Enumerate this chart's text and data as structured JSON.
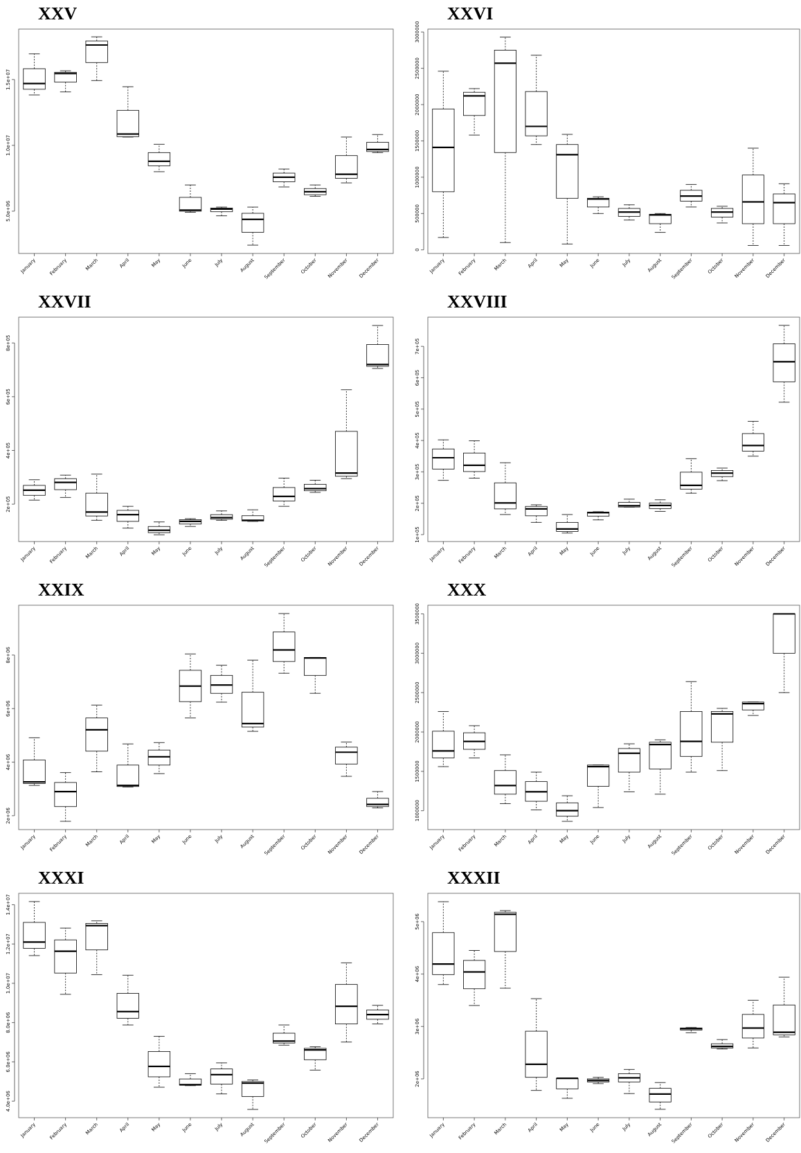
{
  "chart_data": [
    {
      "type": "box",
      "title": "XXV",
      "categories": [
        "January",
        "February",
        "March",
        "April",
        "May",
        "June",
        "July",
        "August",
        "September",
        "October",
        "November",
        "December"
      ],
      "ylim": [
        1790000,
        18830000
      ],
      "yticks": [
        {
          "value": 5000000,
          "label": "5.0e+06"
        },
        {
          "value": 10000000,
          "label": "1.0e+07"
        },
        {
          "value": 15000000,
          "label": "1.5e+07"
        }
      ],
      "boxes": [
        {
          "low": 13830000,
          "q1": 14260000,
          "median": 14690000,
          "q3": 15820000,
          "high": 16950000
        },
        {
          "low": 14060000,
          "q1": 14800000,
          "median": 15450000,
          "q3": 15550000,
          "high": 15660000
        },
        {
          "low": 14920000,
          "q1": 16290000,
          "median": 17620000,
          "q3": 17930000,
          "high": 18240000
        },
        {
          "low": 10630000,
          "q1": 10660000,
          "median": 10860000,
          "q3": 12660000,
          "high": 14450000
        },
        {
          "low": 8000000,
          "q1": 8440000,
          "median": 8790000,
          "q3": 9450000,
          "high": 10080000
        },
        {
          "low": 4920000,
          "q1": 5000000,
          "median": 5080000,
          "q3": 6050000,
          "high": 6990000
        },
        {
          "low": 4650000,
          "q1": 4960000,
          "median": 5160000,
          "q3": 5230000,
          "high": 5310000
        },
        {
          "low": 2420000,
          "q1": 3400000,
          "median": 4380000,
          "q3": 4840000,
          "high": 5310000
        },
        {
          "low": 6840000,
          "q1": 7230000,
          "median": 7580000,
          "q3": 7890000,
          "high": 8200000
        },
        {
          "low": 6130000,
          "q1": 6250000,
          "median": 6480000,
          "q3": 6720000,
          "high": 6990000
        },
        {
          "low": 7150000,
          "q1": 7500000,
          "median": 7810000,
          "q3": 9220000,
          "high": 10630000
        },
        {
          "low": 9450000,
          "q1": 9530000,
          "median": 9690000,
          "q3": 10230000,
          "high": 10820000
        }
      ]
    },
    {
      "type": "box",
      "title": "XXVI",
      "categories": [
        "January",
        "February",
        "March",
        "April",
        "May",
        "June",
        "July",
        "August",
        "September",
        "October",
        "November",
        "December"
      ],
      "ylim": [
        -50000,
        3040000
      ],
      "yticks": [
        0,
        500000,
        1000000,
        1500000,
        2000000,
        2500000,
        3000000
      ],
      "boxes": [
        {
          "low": 170000,
          "q1": 800000,
          "median": 1410000,
          "q3": 1940000,
          "high": 2460000
        },
        {
          "low": 1580000,
          "q1": 1850000,
          "median": 2120000,
          "q3": 2170000,
          "high": 2220000
        },
        {
          "low": 100000,
          "q1": 1340000,
          "median": 2570000,
          "q3": 2750000,
          "high": 2930000
        },
        {
          "low": 1450000,
          "q1": 1570000,
          "median": 1700000,
          "q3": 2180000,
          "high": 2680000
        },
        {
          "low": 80000,
          "q1": 710000,
          "median": 1310000,
          "q3": 1450000,
          "high": 1590000
        },
        {
          "low": 500000,
          "q1": 590000,
          "median": 700000,
          "q3": 710000,
          "high": 730000
        },
        {
          "low": 410000,
          "q1": 460000,
          "median": 520000,
          "q3": 570000,
          "high": 620000
        },
        {
          "low": 240000,
          "q1": 360000,
          "median": 480000,
          "q3": 490000,
          "high": 500000
        },
        {
          "low": 590000,
          "q1": 670000,
          "median": 740000,
          "q3": 820000,
          "high": 900000
        },
        {
          "low": 370000,
          "q1": 450000,
          "median": 520000,
          "q3": 570000,
          "high": 600000
        },
        {
          "low": 60000,
          "q1": 360000,
          "median": 660000,
          "q3": 1030000,
          "high": 1400000
        },
        {
          "low": 60000,
          "q1": 360000,
          "median": 650000,
          "q3": 770000,
          "high": 910000
        }
      ]
    },
    {
      "type": "box",
      "title": "XXVII",
      "categories": [
        "January",
        "February",
        "March",
        "April",
        "May",
        "June",
        "July",
        "August",
        "September",
        "October",
        "November",
        "December"
      ],
      "ylim": [
        61000,
        896000
      ],
      "yticks": [
        {
          "value": 200000,
          "label": "2e+05"
        },
        {
          "value": 400000,
          "label": "4e+05"
        },
        {
          "value": 600000,
          "label": "6e+05"
        },
        {
          "value": 800000,
          "label": "8e+05"
        }
      ],
      "boxes": [
        {
          "low": 215000,
          "q1": 233000,
          "median": 252000,
          "q3": 270000,
          "high": 291000
        },
        {
          "low": 225000,
          "q1": 254000,
          "median": 281000,
          "q3": 295000,
          "high": 308000
        },
        {
          "low": 140000,
          "q1": 156000,
          "median": 171000,
          "q3": 241000,
          "high": 312000
        },
        {
          "low": 111000,
          "q1": 136000,
          "median": 161000,
          "q3": 177000,
          "high": 192000
        },
        {
          "low": 86000,
          "q1": 94000,
          "median": 103000,
          "q3": 117000,
          "high": 134000
        },
        {
          "low": 117000,
          "q1": 126000,
          "median": 136000,
          "q3": 142000,
          "high": 146000
        },
        {
          "low": 140000,
          "q1": 144000,
          "median": 150000,
          "q3": 161000,
          "high": 175000
        },
        {
          "low": 136000,
          "q1": 138000,
          "median": 140000,
          "q3": 157000,
          "high": 179000
        },
        {
          "low": 192000,
          "q1": 212000,
          "median": 229000,
          "q3": 262000,
          "high": 297000
        },
        {
          "low": 244000,
          "q1": 250000,
          "median": 258000,
          "q3": 274000,
          "high": 289000
        },
        {
          "low": 295000,
          "q1": 304000,
          "median": 316000,
          "q3": 471000,
          "high": 626000
        },
        {
          "low": 705000,
          "q1": 713000,
          "median": 720000,
          "q3": 794000,
          "high": 865000
        }
      ]
    },
    {
      "type": "box",
      "title": "XXVIII",
      "categories": [
        "January",
        "February",
        "March",
        "April",
        "May",
        "June",
        "July",
        "August",
        "September",
        "October",
        "November",
        "December"
      ],
      "ylim": [
        78000,
        793000
      ],
      "yticks": [
        {
          "value": 100000,
          "label": "1e+05"
        },
        {
          "value": 200000,
          "label": "2e+05"
        },
        {
          "value": 300000,
          "label": "3e+05"
        },
        {
          "value": 400000,
          "label": "4e+05"
        },
        {
          "value": 500000,
          "label": "5e+05"
        },
        {
          "value": 600000,
          "label": "6e+05"
        },
        {
          "value": 700000,
          "label": "7e+05"
        }
      ],
      "boxes": [
        {
          "low": 273000,
          "q1": 309000,
          "median": 345000,
          "q3": 373000,
          "high": 402000
        },
        {
          "low": 280000,
          "q1": 301000,
          "median": 321000,
          "q3": 360000,
          "high": 399000
        },
        {
          "low": 164000,
          "q1": 182000,
          "median": 201000,
          "q3": 265000,
          "high": 329000
        },
        {
          "low": 139000,
          "q1": 160000,
          "median": 182000,
          "q3": 190000,
          "high": 195000
        },
        {
          "low": 105000,
          "q1": 110000,
          "median": 118000,
          "q3": 139000,
          "high": 164000
        },
        {
          "low": 147000,
          "q1": 159000,
          "median": 170000,
          "q3": 172000,
          "high": 173000
        },
        {
          "low": 188000,
          "q1": 188000,
          "median": 192000,
          "q3": 203000,
          "high": 213000
        },
        {
          "low": 174000,
          "q1": 183000,
          "median": 193000,
          "q3": 201000,
          "high": 211000
        },
        {
          "low": 232000,
          "q1": 245000,
          "median": 257000,
          "q3": 299000,
          "high": 342000
        },
        {
          "low": 272000,
          "q1": 285000,
          "median": 296000,
          "q3": 304000,
          "high": 312000
        },
        {
          "low": 350000,
          "q1": 366000,
          "median": 384000,
          "q3": 422000,
          "high": 461000
        },
        {
          "low": 522000,
          "q1": 587000,
          "median": 651000,
          "q3": 708000,
          "high": 767000
        }
      ]
    },
    {
      "type": "box",
      "title": "XXIX",
      "categories": [
        "January",
        "February",
        "March",
        "April",
        "May",
        "June",
        "July",
        "August",
        "September",
        "October",
        "November",
        "December"
      ],
      "ylim": [
        1480000,
        9860000
      ],
      "yticks": [
        {
          "value": 2000000,
          "label": "2e+06"
        },
        {
          "value": 4000000,
          "label": "4e+06"
        },
        {
          "value": 6000000,
          "label": "6e+06"
        },
        {
          "value": 8000000,
          "label": "8e+06"
        }
      ],
      "boxes": [
        {
          "low": 3130000,
          "q1": 3200000,
          "median": 3260000,
          "q3": 4080000,
          "high": 4910000
        },
        {
          "low": 1790000,
          "q1": 2340000,
          "median": 2900000,
          "q3": 3240000,
          "high": 3610000
        },
        {
          "low": 3640000,
          "q1": 4410000,
          "median": 5210000,
          "q3": 5650000,
          "high": 6130000
        },
        {
          "low": 3070000,
          "q1": 3090000,
          "median": 3130000,
          "q3": 3890000,
          "high": 4680000
        },
        {
          "low": 3570000,
          "q1": 3890000,
          "median": 4200000,
          "q3": 4450000,
          "high": 4730000
        },
        {
          "low": 5650000,
          "q1": 6260000,
          "median": 6840000,
          "q3": 7430000,
          "high": 8040000
        },
        {
          "low": 6240000,
          "q1": 6570000,
          "median": 6880000,
          "q3": 7240000,
          "high": 7620000
        },
        {
          "low": 5150000,
          "q1": 5310000,
          "median": 5440000,
          "q3": 6610000,
          "high": 7810000
        },
        {
          "low": 7320000,
          "q1": 7760000,
          "median": 8190000,
          "q3": 8860000,
          "high": 9550000
        },
        {
          "low": 6570000,
          "q1": 7240000,
          "median": 7890000,
          "q3": 7910000,
          "high": 7910000
        },
        {
          "low": 3470000,
          "q1": 3930000,
          "median": 4370000,
          "q3": 4560000,
          "high": 4750000
        },
        {
          "low": 2290000,
          "q1": 2340000,
          "median": 2420000,
          "q3": 2650000,
          "high": 2900000
        }
      ]
    },
    {
      "type": "box",
      "title": "XXX",
      "categories": [
        "January",
        "February",
        "March",
        "April",
        "May",
        "June",
        "July",
        "August",
        "September",
        "October",
        "November",
        "December"
      ],
      "ylim": [
        760000,
        3610000
      ],
      "yticks": [
        1000000,
        1500000,
        2000000,
        2500000,
        3000000,
        3500000
      ],
      "boxes": [
        {
          "low": 1560000,
          "q1": 1670000,
          "median": 1760000,
          "q3": 2010000,
          "high": 2260000
        },
        {
          "low": 1670000,
          "q1": 1780000,
          "median": 1880000,
          "q3": 1990000,
          "high": 2080000
        },
        {
          "low": 1090000,
          "q1": 1210000,
          "median": 1320000,
          "q3": 1510000,
          "high": 1710000
        },
        {
          "low": 1010000,
          "q1": 1120000,
          "median": 1240000,
          "q3": 1370000,
          "high": 1490000
        },
        {
          "low": 865000,
          "q1": 930000,
          "median": 1000000,
          "q3": 1100000,
          "high": 1190000
        },
        {
          "low": 1040000,
          "q1": 1310000,
          "median": 1560000,
          "q3": 1580000,
          "high": 1580000
        },
        {
          "low": 1240000,
          "q1": 1490000,
          "median": 1730000,
          "q3": 1790000,
          "high": 1850000
        },
        {
          "low": 1210000,
          "q1": 1530000,
          "median": 1840000,
          "q3": 1870000,
          "high": 1900000
        },
        {
          "low": 1490000,
          "q1": 1690000,
          "median": 1880000,
          "q3": 2260000,
          "high": 2640000
        },
        {
          "low": 1510000,
          "q1": 1870000,
          "median": 2230000,
          "q3": 2260000,
          "high": 2300000
        },
        {
          "low": 2210000,
          "q1": 2280000,
          "median": 2360000,
          "q3": 2380000,
          "high": 2380000
        },
        {
          "low": 2500000,
          "q1": 3000000,
          "median": 3500000,
          "q3": 3500000,
          "high": 3500000
        }
      ]
    },
    {
      "type": "box",
      "title": "XXXI",
      "categories": [
        "January",
        "February",
        "March",
        "April",
        "May",
        "June",
        "July",
        "August",
        "September",
        "October",
        "November",
        "December"
      ],
      "ylim": [
        3160000,
        14580000
      ],
      "yticks": [
        {
          "value": 4000000,
          "label": "4.0e+06"
        },
        {
          "value": 6000000,
          "label": "6.0e+06"
        },
        {
          "value": 8000000,
          "label": "8.0e+06"
        },
        {
          "value": 10000000,
          "label": "1.0e+07"
        },
        {
          "value": 12000000,
          "label": "1.2e+07"
        },
        {
          "value": 14000000,
          "label": "1.4e+07"
        }
      ],
      "boxes": [
        {
          "low": 11410000,
          "q1": 11780000,
          "median": 12100000,
          "q3": 13100000,
          "high": 14160000
        },
        {
          "low": 9440000,
          "q1": 10520000,
          "median": 11630000,
          "q3": 12210000,
          "high": 12810000
        },
        {
          "low": 10440000,
          "q1": 11700000,
          "median": 12940000,
          "q3": 13050000,
          "high": 13180000
        },
        {
          "low": 7880000,
          "q1": 8220000,
          "median": 8560000,
          "q3": 9490000,
          "high": 10410000
        },
        {
          "low": 4710000,
          "q1": 5240000,
          "median": 5770000,
          "q3": 6530000,
          "high": 7300000
        },
        {
          "low": 4790000,
          "q1": 4820000,
          "median": 4840000,
          "q3": 5130000,
          "high": 5400000
        },
        {
          "low": 4370000,
          "q1": 4870000,
          "median": 5350000,
          "q3": 5640000,
          "high": 5950000
        },
        {
          "low": 3580000,
          "q1": 4240000,
          "median": 4920000,
          "q3": 5000000,
          "high": 5080000
        },
        {
          "low": 6850000,
          "q1": 6960000,
          "median": 7060000,
          "q3": 7460000,
          "high": 7880000
        },
        {
          "low": 5580000,
          "q1": 6110000,
          "median": 6610000,
          "q3": 6690000,
          "high": 6770000
        },
        {
          "low": 7010000,
          "q1": 7930000,
          "median": 8830000,
          "q3": 9940000,
          "high": 11040000
        },
        {
          "low": 7930000,
          "q1": 8170000,
          "median": 8410000,
          "q3": 8640000,
          "high": 8880000
        }
      ]
    },
    {
      "type": "box",
      "title": "XXXII",
      "categories": [
        "January",
        "February",
        "March",
        "April",
        "May",
        "June",
        "July",
        "August",
        "September",
        "October",
        "November",
        "December"
      ],
      "ylim": [
        1260000,
        5540000
      ],
      "yticks": [
        {
          "value": 2000000,
          "label": "2e+06"
        },
        {
          "value": 3000000,
          "label": "3e+06"
        },
        {
          "value": 4000000,
          "label": "4e+06"
        },
        {
          "value": 5000000,
          "label": "5e+06"
        }
      ],
      "boxes": [
        {
          "low": 3800000,
          "q1": 3990000,
          "median": 4190000,
          "q3": 4790000,
          "high": 5380000
        },
        {
          "low": 3400000,
          "q1": 3720000,
          "median": 4040000,
          "q3": 4260000,
          "high": 4450000
        },
        {
          "low": 3730000,
          "q1": 4430000,
          "median": 5140000,
          "q3": 5180000,
          "high": 5210000
        },
        {
          "low": 1780000,
          "q1": 2030000,
          "median": 2280000,
          "q3": 2910000,
          "high": 3530000
        },
        {
          "low": 1630000,
          "q1": 1810000,
          "median": 2010000,
          "q3": 2010000,
          "high": 2010000
        },
        {
          "low": 1910000,
          "q1": 1940000,
          "median": 1970000,
          "q3": 2000000,
          "high": 2030000
        },
        {
          "low": 1720000,
          "q1": 1940000,
          "median": 2020000,
          "q3": 2100000,
          "high": 2180000
        },
        {
          "low": 1420000,
          "q1": 1560000,
          "median": 1710000,
          "q3": 1820000,
          "high": 1930000
        },
        {
          "low": 2880000,
          "q1": 2930000,
          "median": 2960000,
          "q3": 2970000,
          "high": 2980000
        },
        {
          "low": 2570000,
          "q1": 2590000,
          "median": 2620000,
          "q3": 2670000,
          "high": 2750000
        },
        {
          "low": 2590000,
          "q1": 2780000,
          "median": 2970000,
          "q3": 3230000,
          "high": 3500000
        },
        {
          "low": 2800000,
          "q1": 2840000,
          "median": 2890000,
          "q3": 3410000,
          "high": 3940000
        }
      ]
    }
  ]
}
